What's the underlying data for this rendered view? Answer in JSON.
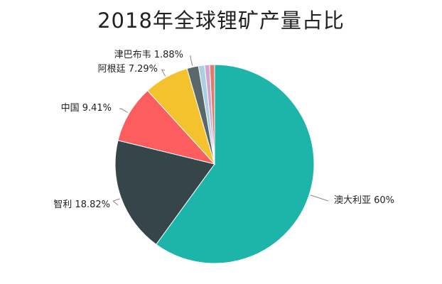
{
  "chart_data": {
    "type": "pie",
    "title": "2018年全球锂矿产量占比",
    "slices": [
      {
        "name": "澳大利亚",
        "value": 60,
        "label": "澳大利亚 60%",
        "color": "#1db5a9"
      },
      {
        "name": "智利",
        "value": 18.82,
        "label": "智利 18.82%",
        "color": "#364549"
      },
      {
        "name": "中国",
        "value": 9.41,
        "label": "中国 9.41%",
        "color": "#fc5e5f"
      },
      {
        "name": "阿根廷",
        "value": 7.29,
        "label": "阿根廷 7.29%",
        "color": "#f4c22d"
      },
      {
        "name": "津巴布韦",
        "value": 1.88,
        "label": "津巴布韦 1.88%",
        "color": "#5a676b"
      },
      {
        "name": "",
        "value": 1.0,
        "label": "",
        "color": "#a9cfe1"
      },
      {
        "name": "",
        "value": 0.8,
        "label": "",
        "color": "#cfa6ce"
      },
      {
        "name": "",
        "value": 0.8,
        "label": "",
        "color": "#e07b6e"
      }
    ]
  }
}
